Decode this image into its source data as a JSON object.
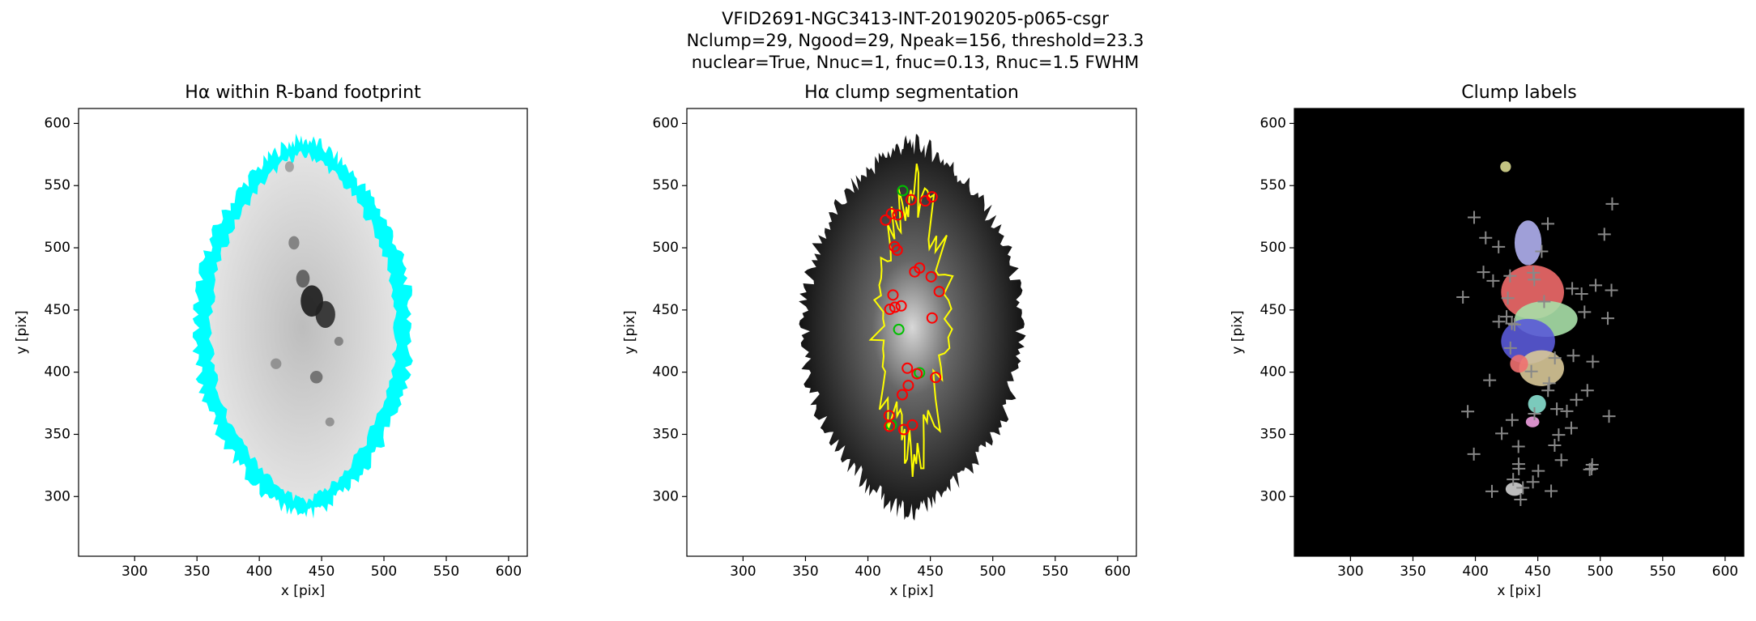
{
  "suptitle": [
    "VFID2691-NGC3413-INT-20190205-p065-csgr",
    "Nclump=29, Ngood=29, Npeak=156, threshold=23.3",
    "nuclear=True, Nnuc=1, fnuc=0.13, Rnuc=1.5 FWHM"
  ],
  "chart_data": [
    {
      "type": "image",
      "title": "Hα within R-band footprint",
      "xlabel": "x [pix]",
      "ylabel": "y [pix]",
      "xlim": [
        255,
        615
      ],
      "ylim": [
        252,
        612
      ],
      "xticks": [
        300,
        350,
        400,
        450,
        500,
        550,
        600
      ],
      "yticks": [
        300,
        350,
        400,
        450,
        500,
        550,
        600
      ]
    },
    {
      "type": "image",
      "title": "Hα clump segmentation",
      "xlabel": "x [pix]",
      "ylabel": "y [pix]",
      "xlim": [
        255,
        615
      ],
      "ylim": [
        252,
        612
      ],
      "xticks": [
        300,
        350,
        400,
        450,
        500,
        550,
        600
      ],
      "yticks": [
        300,
        350,
        400,
        450,
        500,
        550,
        600
      ]
    },
    {
      "type": "image",
      "title": "Clump labels",
      "xlabel": "x [pix]",
      "ylabel": "y [pix]",
      "xlim": [
        255,
        615
      ],
      "ylim": [
        252,
        612
      ],
      "xticks": [
        300,
        350,
        400,
        450,
        500,
        550,
        600
      ],
      "yticks": [
        300,
        350,
        400,
        450,
        500,
        550,
        600
      ]
    }
  ]
}
